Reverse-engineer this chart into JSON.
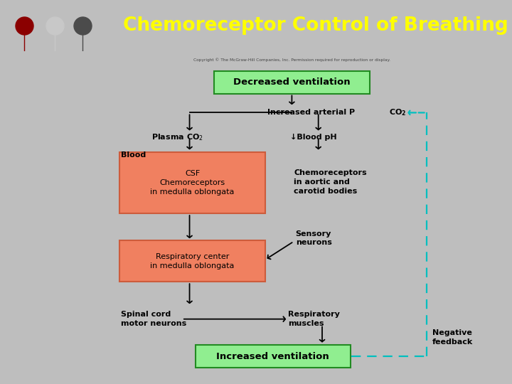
{
  "title": "Chemoreceptor Control of Breathing",
  "title_color": "#FFFF00",
  "header_bg": "#8B2525",
  "icon_bg": "#000000",
  "fig_bg": "#BEBEBE",
  "diagram_bg": "#FFFFFF",
  "copyright": "Copyright © The McGraw-Hill Companies, Inc. Permission required for reproduction or display.",
  "box_decreased": {
    "text": "Decreased ventilation",
    "bg": "#90EE90",
    "border": "#228B22"
  },
  "box_increased": {
    "text": "Increased ventilation",
    "bg": "#90EE90",
    "border": "#228B22"
  },
  "box_csf": {
    "text": "CSF\nChemoreceptors\nin medulla oblongata",
    "bg": "#F08060",
    "border": "#CD5C3C"
  },
  "box_resp_center": {
    "text": "Respiratory center\nin medulla oblongata",
    "bg": "#F08060",
    "border": "#CD5C3C"
  },
  "dashed_color": "#00BFBF",
  "arrow_color": "#000000",
  "text_color": "#000000"
}
